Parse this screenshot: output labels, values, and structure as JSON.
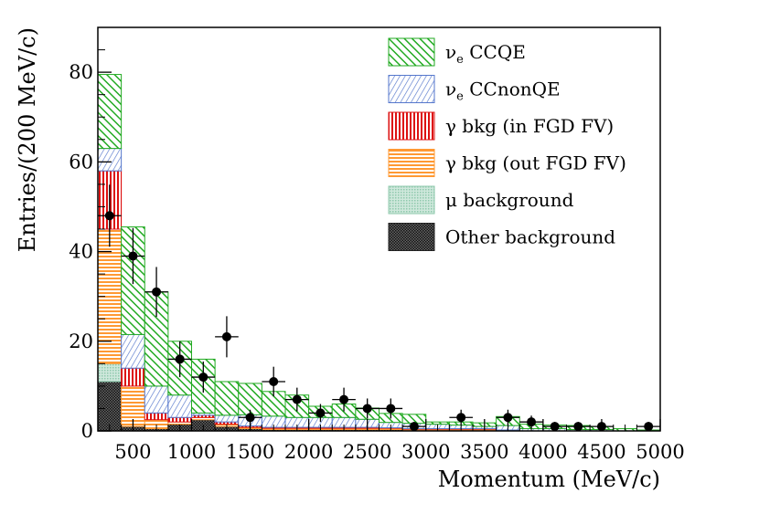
{
  "chart_data": {
    "type": "stacked-histogram",
    "xlabel": "Momentum (MeV/c)",
    "ylabel": "Entries/(200 MeV/c)",
    "xlim": [
      200,
      5000
    ],
    "ylim": [
      0,
      90
    ],
    "bin_edges": [
      200,
      400,
      600,
      800,
      1000,
      1200,
      1400,
      1600,
      1800,
      2000,
      2200,
      2400,
      2600,
      2800,
      3000,
      3200,
      3400,
      3600,
      3800,
      4000,
      4200,
      4400,
      4600,
      4800,
      5000
    ],
    "x_ticks": [
      500,
      1000,
      1500,
      2000,
      2500,
      3000,
      3500,
      4000,
      4500,
      5000
    ],
    "x_tick_labels": [
      "500",
      "1000",
      "1500",
      "2000",
      "2500",
      "3000",
      "3500",
      "4000",
      "4500",
      "5000"
    ],
    "y_ticks": [
      0,
      20,
      40,
      60,
      80
    ],
    "y_tick_labels": [
      "0",
      "20",
      "40",
      "60",
      "80"
    ],
    "series": [
      {
        "name": "Other background",
        "key": "other",
        "color": "#222222",
        "values": [
          11,
          1,
          0.5,
          1.5,
          2.5,
          1,
          0.5,
          0.3,
          0.3,
          0.3,
          0.3,
          0.3,
          0.3,
          0.2,
          0.2,
          0.2,
          0.2,
          0,
          0,
          0,
          0,
          0,
          0,
          0
        ]
      },
      {
        "name": "μ background",
        "key": "mu",
        "color": "#8fc9ad",
        "values": [
          4,
          0,
          0,
          0,
          0,
          0,
          0,
          0,
          0,
          0,
          0,
          0,
          0,
          0,
          0,
          0,
          0,
          0,
          0,
          0,
          0,
          0,
          0,
          0
        ]
      },
      {
        "name": "γ bkg (out FGD FV)",
        "key": "gout",
        "color": "#ff9933",
        "values": [
          30,
          9,
          2,
          0.5,
          0.5,
          0.5,
          0.3,
          0.3,
          0.3,
          0.3,
          0.3,
          0.3,
          0.3,
          0.2,
          0.2,
          0.2,
          0.2,
          0.2,
          0,
          0,
          0,
          0,
          0,
          0
        ]
      },
      {
        "name": "γ bkg (in FGD FV)",
        "key": "gin",
        "color": "#dd1111",
        "values": [
          13,
          4,
          1.5,
          1,
          0.5,
          0.5,
          0.3,
          0.2,
          0.2,
          0.2,
          0.2,
          0.2,
          0.1,
          0.1,
          0.1,
          0.1,
          0.1,
          0,
          0,
          0,
          0,
          0,
          0,
          0
        ]
      },
      {
        "name": "νₑ CCnonQE",
        "key": "nonqe",
        "color": "#5577cc",
        "values": [
          5,
          7.5,
          6,
          5,
          0.5,
          1.5,
          2.5,
          2.5,
          2.2,
          2.2,
          2.2,
          1.8,
          1.2,
          1.2,
          1,
          0.8,
          0.5,
          1,
          0.5,
          0.5,
          0.3,
          0.3,
          0,
          0
        ]
      },
      {
        "name": "νₑ CCQE",
        "key": "ccqe",
        "color": "#22aa22",
        "values": [
          16.5,
          24,
          21,
          12,
          12,
          7.5,
          7,
          5.5,
          5,
          2.5,
          3,
          2.5,
          2,
          2,
          0.5,
          0.7,
          0.8,
          2,
          1,
          0.8,
          0.9,
          0.7,
          0.5,
          0.2
        ]
      }
    ],
    "data_points": {
      "x": [
        300,
        500,
        700,
        900,
        1100,
        1300,
        1500,
        1700,
        1900,
        2100,
        2300,
        2500,
        2700,
        2900,
        3300,
        3700,
        3900,
        4100,
        4300,
        4500,
        4900
      ],
      "y": [
        48,
        39,
        31,
        16,
        12,
        21,
        3,
        11,
        7,
        4,
        7,
        5,
        5,
        1,
        3,
        3,
        2,
        1,
        1,
        1,
        1
      ]
    },
    "legend": [
      {
        "label_main": "ν",
        "label_sub": "e",
        "label_rest": " CCQE",
        "color": "#22aa22",
        "pattern": "diag1"
      },
      {
        "label_main": "ν",
        "label_sub": "e",
        "label_rest": " CCnonQE",
        "color": "#5577cc",
        "pattern": "diag2"
      },
      {
        "label_main": "γ bkg (in FGD FV)",
        "label_sub": "",
        "label_rest": "",
        "color": "#dd1111",
        "pattern": "vert"
      },
      {
        "label_main": "γ bkg (out FGD FV)",
        "label_sub": "",
        "label_rest": "",
        "color": "#ff9933",
        "pattern": "horiz"
      },
      {
        "label_main": "μ background",
        "label_sub": "",
        "label_rest": "",
        "color": "#8fc9ad",
        "pattern": "dots"
      },
      {
        "label_main": "Other background",
        "label_sub": "",
        "label_rest": "",
        "color": "#222222",
        "pattern": "dense"
      }
    ]
  }
}
